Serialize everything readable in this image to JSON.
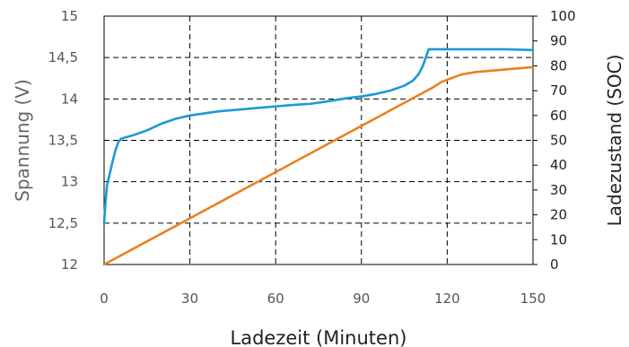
{
  "chart_data": {
    "type": "line",
    "xlabel": "Ladezeit (Minuten)",
    "ylabel": "Spannung (V)",
    "y2label": "Ladezustand (SOC)",
    "xlim": [
      0,
      150
    ],
    "ylim": [
      12,
      15
    ],
    "y2lim": [
      0,
      100
    ],
    "x_ticks": [
      "0",
      "30",
      "60",
      "90",
      "120",
      "150"
    ],
    "y_ticks": [
      "12",
      "12,5",
      "13",
      "13,5",
      "14",
      "14,5",
      "15"
    ],
    "y2_ticks": [
      "0",
      "10",
      "20",
      "30",
      "40",
      "50",
      "60",
      "70",
      "80",
      "90",
      "100"
    ],
    "grid": true,
    "legend": "none",
    "colors": {
      "voltage": "#1a9ad6",
      "soc": "#e8821e"
    },
    "series": [
      {
        "axis": "left",
        "color": "#1a9ad6",
        "points": [
          [
            0,
            12.5
          ],
          [
            0.5,
            12.75
          ],
          [
            1,
            12.95
          ],
          [
            2,
            13.1
          ],
          [
            3,
            13.25
          ],
          [
            4,
            13.38
          ],
          [
            5,
            13.48
          ],
          [
            6,
            13.52
          ],
          [
            8,
            13.54
          ],
          [
            10,
            13.56
          ],
          [
            15,
            13.62
          ],
          [
            20,
            13.7
          ],
          [
            25,
            13.76
          ],
          [
            30,
            13.8
          ],
          [
            40,
            13.85
          ],
          [
            50,
            13.88
          ],
          [
            60,
            13.91
          ],
          [
            67,
            13.93
          ],
          [
            72,
            13.94
          ],
          [
            80,
            13.98
          ],
          [
            85,
            14.01
          ],
          [
            90,
            14.03
          ],
          [
            95,
            14.06
          ],
          [
            100,
            14.1
          ],
          [
            105,
            14.16
          ],
          [
            108,
            14.22
          ],
          [
            110,
            14.3
          ],
          [
            111.5,
            14.4
          ],
          [
            112.5,
            14.5
          ],
          [
            113.5,
            14.6
          ],
          [
            114.5,
            14.6
          ],
          [
            120,
            14.6
          ],
          [
            130,
            14.6
          ],
          [
            140,
            14.6
          ],
          [
            150,
            14.59
          ]
        ]
      },
      {
        "axis": "right",
        "color": "#e8821e",
        "points": [
          [
            0,
            0
          ],
          [
            10,
            6.2
          ],
          [
            20,
            12.4
          ],
          [
            30,
            18.6
          ],
          [
            40,
            24.8
          ],
          [
            50,
            31
          ],
          [
            60,
            37.2
          ],
          [
            70,
            43.4
          ],
          [
            80,
            49.6
          ],
          [
            90,
            55.8
          ],
          [
            100,
            62
          ],
          [
            110,
            68.2
          ],
          [
            115,
            71.3
          ],
          [
            118,
            73.5
          ],
          [
            120,
            74.4
          ],
          [
            125,
            76.5
          ],
          [
            130,
            77.5
          ],
          [
            135,
            78
          ],
          [
            140,
            78.5
          ],
          [
            145,
            79
          ],
          [
            150,
            79.5
          ]
        ]
      }
    ]
  }
}
